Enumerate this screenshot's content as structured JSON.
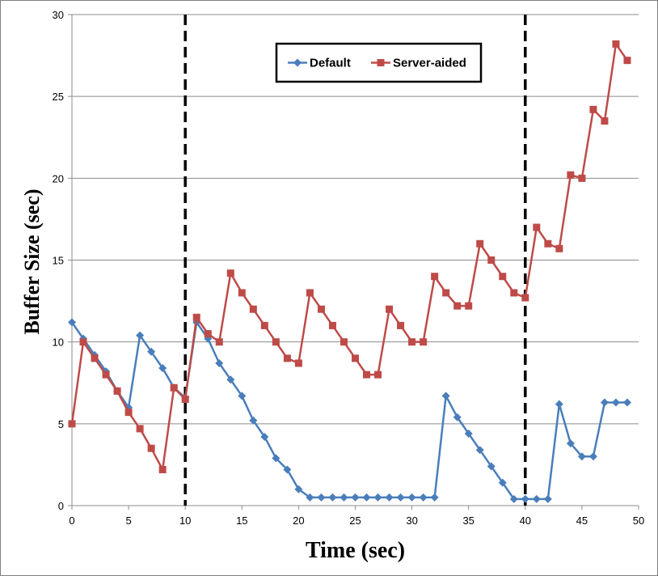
{
  "chart_data": {
    "type": "line",
    "xlabel": "Time (sec)",
    "ylabel": "Buffer Size (sec)",
    "xlim": [
      0,
      50
    ],
    "ylim": [
      0,
      30
    ],
    "xticks": [
      0,
      5,
      10,
      15,
      20,
      25,
      30,
      35,
      40,
      45,
      50
    ],
    "yticks": [
      0,
      5,
      10,
      15,
      20,
      25,
      30
    ],
    "grid": "horizontal",
    "legend_position": "top",
    "vertical_markers": [
      10,
      40
    ],
    "series": [
      {
        "name": "Default",
        "color": "#4a7ebb",
        "marker": "diamond",
        "x": [
          0,
          1,
          2,
          3,
          4,
          5,
          6,
          7,
          8,
          9,
          10,
          11,
          12,
          13,
          14,
          15,
          16,
          17,
          18,
          19,
          20,
          21,
          22,
          23,
          24,
          25,
          26,
          27,
          28,
          29,
          30,
          31,
          32,
          33,
          34,
          35,
          36,
          37,
          38,
          39,
          40,
          41,
          42,
          43,
          44,
          45,
          46,
          47,
          48,
          49
        ],
        "y": [
          11.2,
          10.2,
          9.2,
          8.2,
          7.0,
          6.0,
          10.4,
          9.4,
          8.4,
          7.2,
          6.6,
          11.2,
          10.2,
          8.7,
          7.7,
          6.7,
          5.2,
          4.2,
          2.9,
          2.2,
          1.0,
          0.5,
          0.5,
          0.5,
          0.5,
          0.5,
          0.5,
          0.5,
          0.5,
          0.5,
          0.5,
          0.5,
          0.5,
          6.7,
          5.4,
          4.4,
          3.4,
          2.4,
          1.4,
          0.4,
          0.4,
          0.4,
          0.4,
          6.2,
          3.8,
          3.0,
          3.0,
          6.3,
          6.3,
          6.3
        ]
      },
      {
        "name": "Server-aided",
        "color": "#be4b48",
        "marker": "square",
        "x": [
          0,
          1,
          2,
          3,
          4,
          5,
          6,
          7,
          8,
          9,
          10,
          11,
          12,
          13,
          14,
          15,
          16,
          17,
          18,
          19,
          20,
          21,
          22,
          23,
          24,
          25,
          26,
          27,
          28,
          29,
          30,
          31,
          32,
          33,
          34,
          35,
          36,
          37,
          38,
          39,
          40,
          41,
          42,
          43,
          44,
          45,
          46,
          47,
          48,
          49
        ],
        "y": [
          5.0,
          10.0,
          9.0,
          8.0,
          7.0,
          5.7,
          4.7,
          3.5,
          2.2,
          7.2,
          6.5,
          11.5,
          10.5,
          10.0,
          14.2,
          13.0,
          12.0,
          11.0,
          10.0,
          9.0,
          8.7,
          13.0,
          12.0,
          11.0,
          10.0,
          9.0,
          8.0,
          8.0,
          12.0,
          11.0,
          10.0,
          10.0,
          14.0,
          13.0,
          12.2,
          12.2,
          16.0,
          15.0,
          14.0,
          13.0,
          12.7,
          17.0,
          16.0,
          15.7,
          20.2,
          20.0,
          24.2,
          23.5,
          28.2,
          27.2
        ]
      }
    ]
  }
}
